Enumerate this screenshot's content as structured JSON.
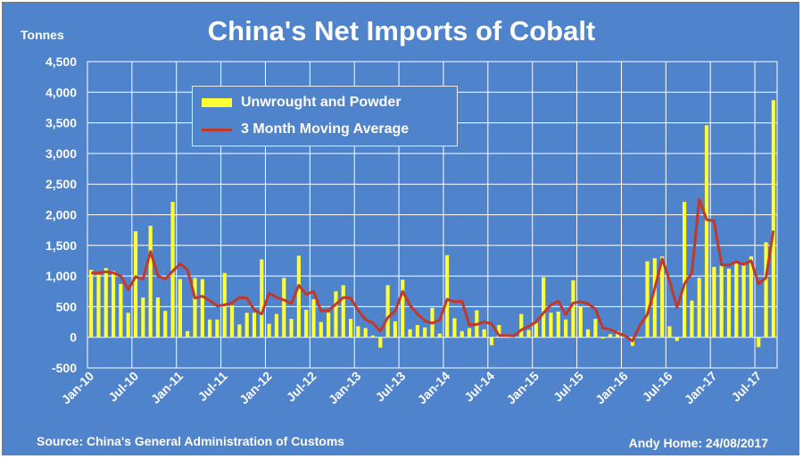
{
  "header": {
    "title": "China's Net Imports of Cobalt",
    "unit": "Tonnes"
  },
  "footer": {
    "source": "Source: China's General Administration of Customs",
    "credit": "Andy Home: 24/08/2017"
  },
  "legend": {
    "bar_label": "Unwrought and Powder",
    "line_label": "3 Month Moving Average"
  },
  "colors": {
    "background": "#4f83cc",
    "bar": "#ffff33",
    "line": "#c0392b",
    "grid": "#ffffff"
  },
  "chart_data": {
    "type": "bar",
    "title": "China's Net Imports of Cobalt",
    "ylabel": "Tonnes",
    "ylim": [
      -500,
      4500
    ],
    "yticks": [
      -500,
      0,
      500,
      1000,
      1500,
      2000,
      2500,
      3000,
      3500,
      4000,
      4500
    ],
    "ytick_labels": [
      "-500",
      "0",
      "500",
      "1,000",
      "1,500",
      "2,000",
      "2,500",
      "3,000",
      "3,500",
      "4,000",
      "4,500"
    ],
    "xtick_labels": [
      "Jan-10",
      "Jul-10",
      "Jan-11",
      "Jul-11",
      "Jan-12",
      "Jul-12",
      "Jan-13",
      "Jul-13",
      "Jan-14",
      "Jul-14",
      "Jan-15",
      "Jul-15",
      "Jan-16",
      "Jul-16",
      "Jan-17",
      "Jul-17"
    ],
    "xtick_every_months": 6,
    "grid": true,
    "legend_position": "top-left",
    "series": [
      {
        "name": "Unwrought and Powder",
        "type": "bar",
        "values": [
          1100,
          1020,
          1130,
          1080,
          870,
          400,
          1730,
          650,
          1820,
          650,
          430,
          2210,
          950,
          100,
          970,
          950,
          290,
          290,
          1050,
          520,
          210,
          400,
          400,
          1270,
          220,
          380,
          970,
          300,
          1330,
          450,
          620,
          250,
          400,
          750,
          850,
          300,
          180,
          150,
          30,
          -170,
          850,
          260,
          940,
          130,
          200,
          160,
          480,
          60,
          1340,
          310,
          100,
          150,
          440,
          130,
          -130,
          200,
          50,
          10,
          380,
          120,
          250,
          980,
          400,
          420,
          290,
          930,
          500,
          130,
          300,
          -20,
          50,
          100,
          30,
          -140,
          0,
          1240,
          1290,
          1320,
          180,
          -60,
          2210,
          600,
          970,
          3460,
          1150,
          1170,
          1120,
          1240,
          1190,
          1320,
          -160,
          1550,
          3870
        ]
      },
      {
        "name": "3 Month Moving Average",
        "type": "line",
        "values": [
          1050,
          1050,
          1070,
          1050,
          1000,
          780,
          990,
          950,
          1400,
          1000,
          950,
          1080,
          1200,
          1100,
          640,
          670,
          600,
          510,
          530,
          560,
          650,
          640,
          450,
          380,
          720,
          650,
          610,
          550,
          850,
          700,
          750,
          430,
          440,
          540,
          650,
          640,
          440,
          290,
          230,
          100,
          320,
          430,
          750,
          520,
          380,
          270,
          230,
          280,
          620,
          580,
          590,
          200,
          210,
          250,
          220,
          30,
          30,
          20,
          120,
          180,
          250,
          400,
          530,
          590,
          370,
          560,
          580,
          550,
          460,
          150,
          130,
          70,
          20,
          -60,
          200,
          370,
          800,
          1280,
          920,
          490,
          870,
          1050,
          2250,
          1920,
          1900,
          1180,
          1180,
          1230,
          1190,
          1250,
          870,
          970,
          1740
        ]
      }
    ]
  }
}
